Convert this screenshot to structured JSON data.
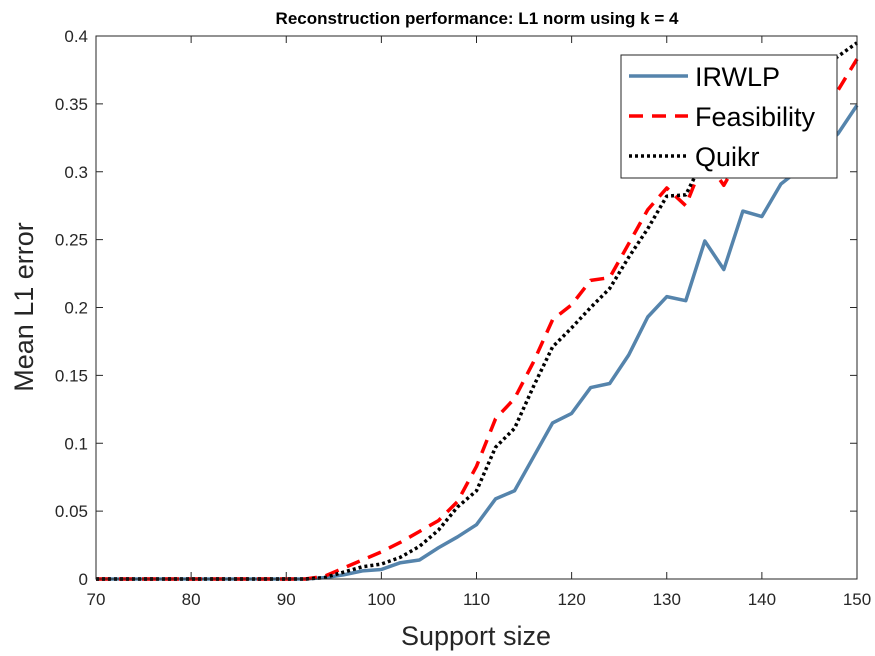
{
  "chart_data": {
    "type": "line",
    "title": "Reconstruction performance: L1 norm using k = 4",
    "xlabel": "Support size",
    "ylabel": "Mean L1 error",
    "xlim": [
      70,
      150
    ],
    "ylim": [
      0,
      0.4
    ],
    "xticks": [
      "70",
      "80",
      "90",
      "100",
      "110",
      "120",
      "130",
      "140",
      "150"
    ],
    "yticks": [
      "0",
      "0.05",
      "0.1",
      "0.15",
      "0.2",
      "0.25",
      "0.3",
      "0.35",
      "0.4"
    ],
    "legend_position": "top-right",
    "series": [
      {
        "name": "IRWLP",
        "color": "#5584ac",
        "style": "solid",
        "x": [
          70,
          72,
          74,
          76,
          78,
          80,
          82,
          84,
          86,
          88,
          90,
          92,
          94,
          96,
          98,
          100,
          102,
          104,
          106,
          108,
          110,
          112,
          114,
          116,
          118,
          120,
          122,
          124,
          126,
          128,
          130,
          132,
          134,
          136,
          138,
          140,
          142,
          144,
          146,
          148,
          150
        ],
        "values": [
          0,
          0,
          0,
          0,
          0,
          0,
          0,
          0,
          0,
          0,
          0,
          0,
          0.001,
          0.003,
          0.006,
          0.007,
          0.012,
          0.014,
          0.023,
          0.031,
          0.04,
          0.059,
          0.065,
          0.09,
          0.115,
          0.122,
          0.141,
          0.144,
          0.165,
          0.193,
          0.208,
          0.205,
          0.249,
          0.228,
          0.271,
          0.267,
          0.291,
          0.302,
          0.315,
          0.328,
          0.349
        ]
      },
      {
        "name": "Feasibility",
        "color": "#ff0000",
        "style": "dashed",
        "x": [
          70,
          72,
          74,
          76,
          78,
          80,
          82,
          84,
          86,
          88,
          90,
          92,
          94,
          96,
          98,
          100,
          102,
          104,
          106,
          108,
          110,
          112,
          114,
          116,
          118,
          120,
          122,
          124,
          126,
          128,
          130,
          132,
          134,
          136,
          138,
          140,
          142,
          144,
          146,
          148,
          150
        ],
        "values": [
          0,
          0,
          0,
          0,
          0,
          0,
          0,
          0,
          0,
          0,
          0,
          0,
          0.002,
          0.008,
          0.014,
          0.02,
          0.027,
          0.035,
          0.043,
          0.057,
          0.083,
          0.118,
          0.133,
          0.16,
          0.191,
          0.202,
          0.22,
          0.222,
          0.247,
          0.272,
          0.288,
          0.275,
          0.31,
          0.29,
          0.315,
          0.318,
          0.33,
          0.338,
          0.35,
          0.36,
          0.383
        ]
      },
      {
        "name": "Quikr",
        "color": "#000000",
        "style": "dotted",
        "x": [
          70,
          72,
          74,
          76,
          78,
          80,
          82,
          84,
          86,
          88,
          90,
          92,
          94,
          96,
          98,
          100,
          102,
          104,
          106,
          108,
          110,
          112,
          114,
          116,
          118,
          120,
          122,
          124,
          126,
          128,
          130,
          132,
          134,
          136,
          138,
          140,
          142,
          144,
          146,
          148,
          150
        ],
        "values": [
          0,
          0,
          0,
          0,
          0,
          0,
          0,
          0,
          0,
          0,
          0,
          0,
          0.001,
          0.005,
          0.009,
          0.011,
          0.016,
          0.024,
          0.036,
          0.053,
          0.065,
          0.097,
          0.111,
          0.142,
          0.171,
          0.185,
          0.2,
          0.214,
          0.237,
          0.258,
          0.282,
          0.283,
          0.311,
          0.32,
          0.335,
          0.342,
          0.352,
          0.362,
          0.375,
          0.385,
          0.395
        ]
      }
    ]
  }
}
